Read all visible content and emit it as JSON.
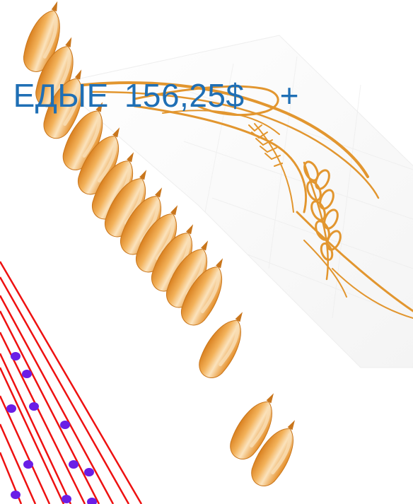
{
  "headline": {
    "text": "ЕДЫЕ",
    "price": "156,25$",
    "plus": "+"
  },
  "colors": {
    "headline": "#1f6fb5",
    "grain_outer": "#e8932a",
    "grain_inner": "#f9dfb6",
    "grain_tip": "#c9761c",
    "wheat_stroke": "#e2962f",
    "lines": "#ee1111",
    "dots": "#6a1ee6"
  },
  "icons": {
    "grain": "wheat-grain-icon",
    "wheat": "wheat-ear-icon"
  }
}
